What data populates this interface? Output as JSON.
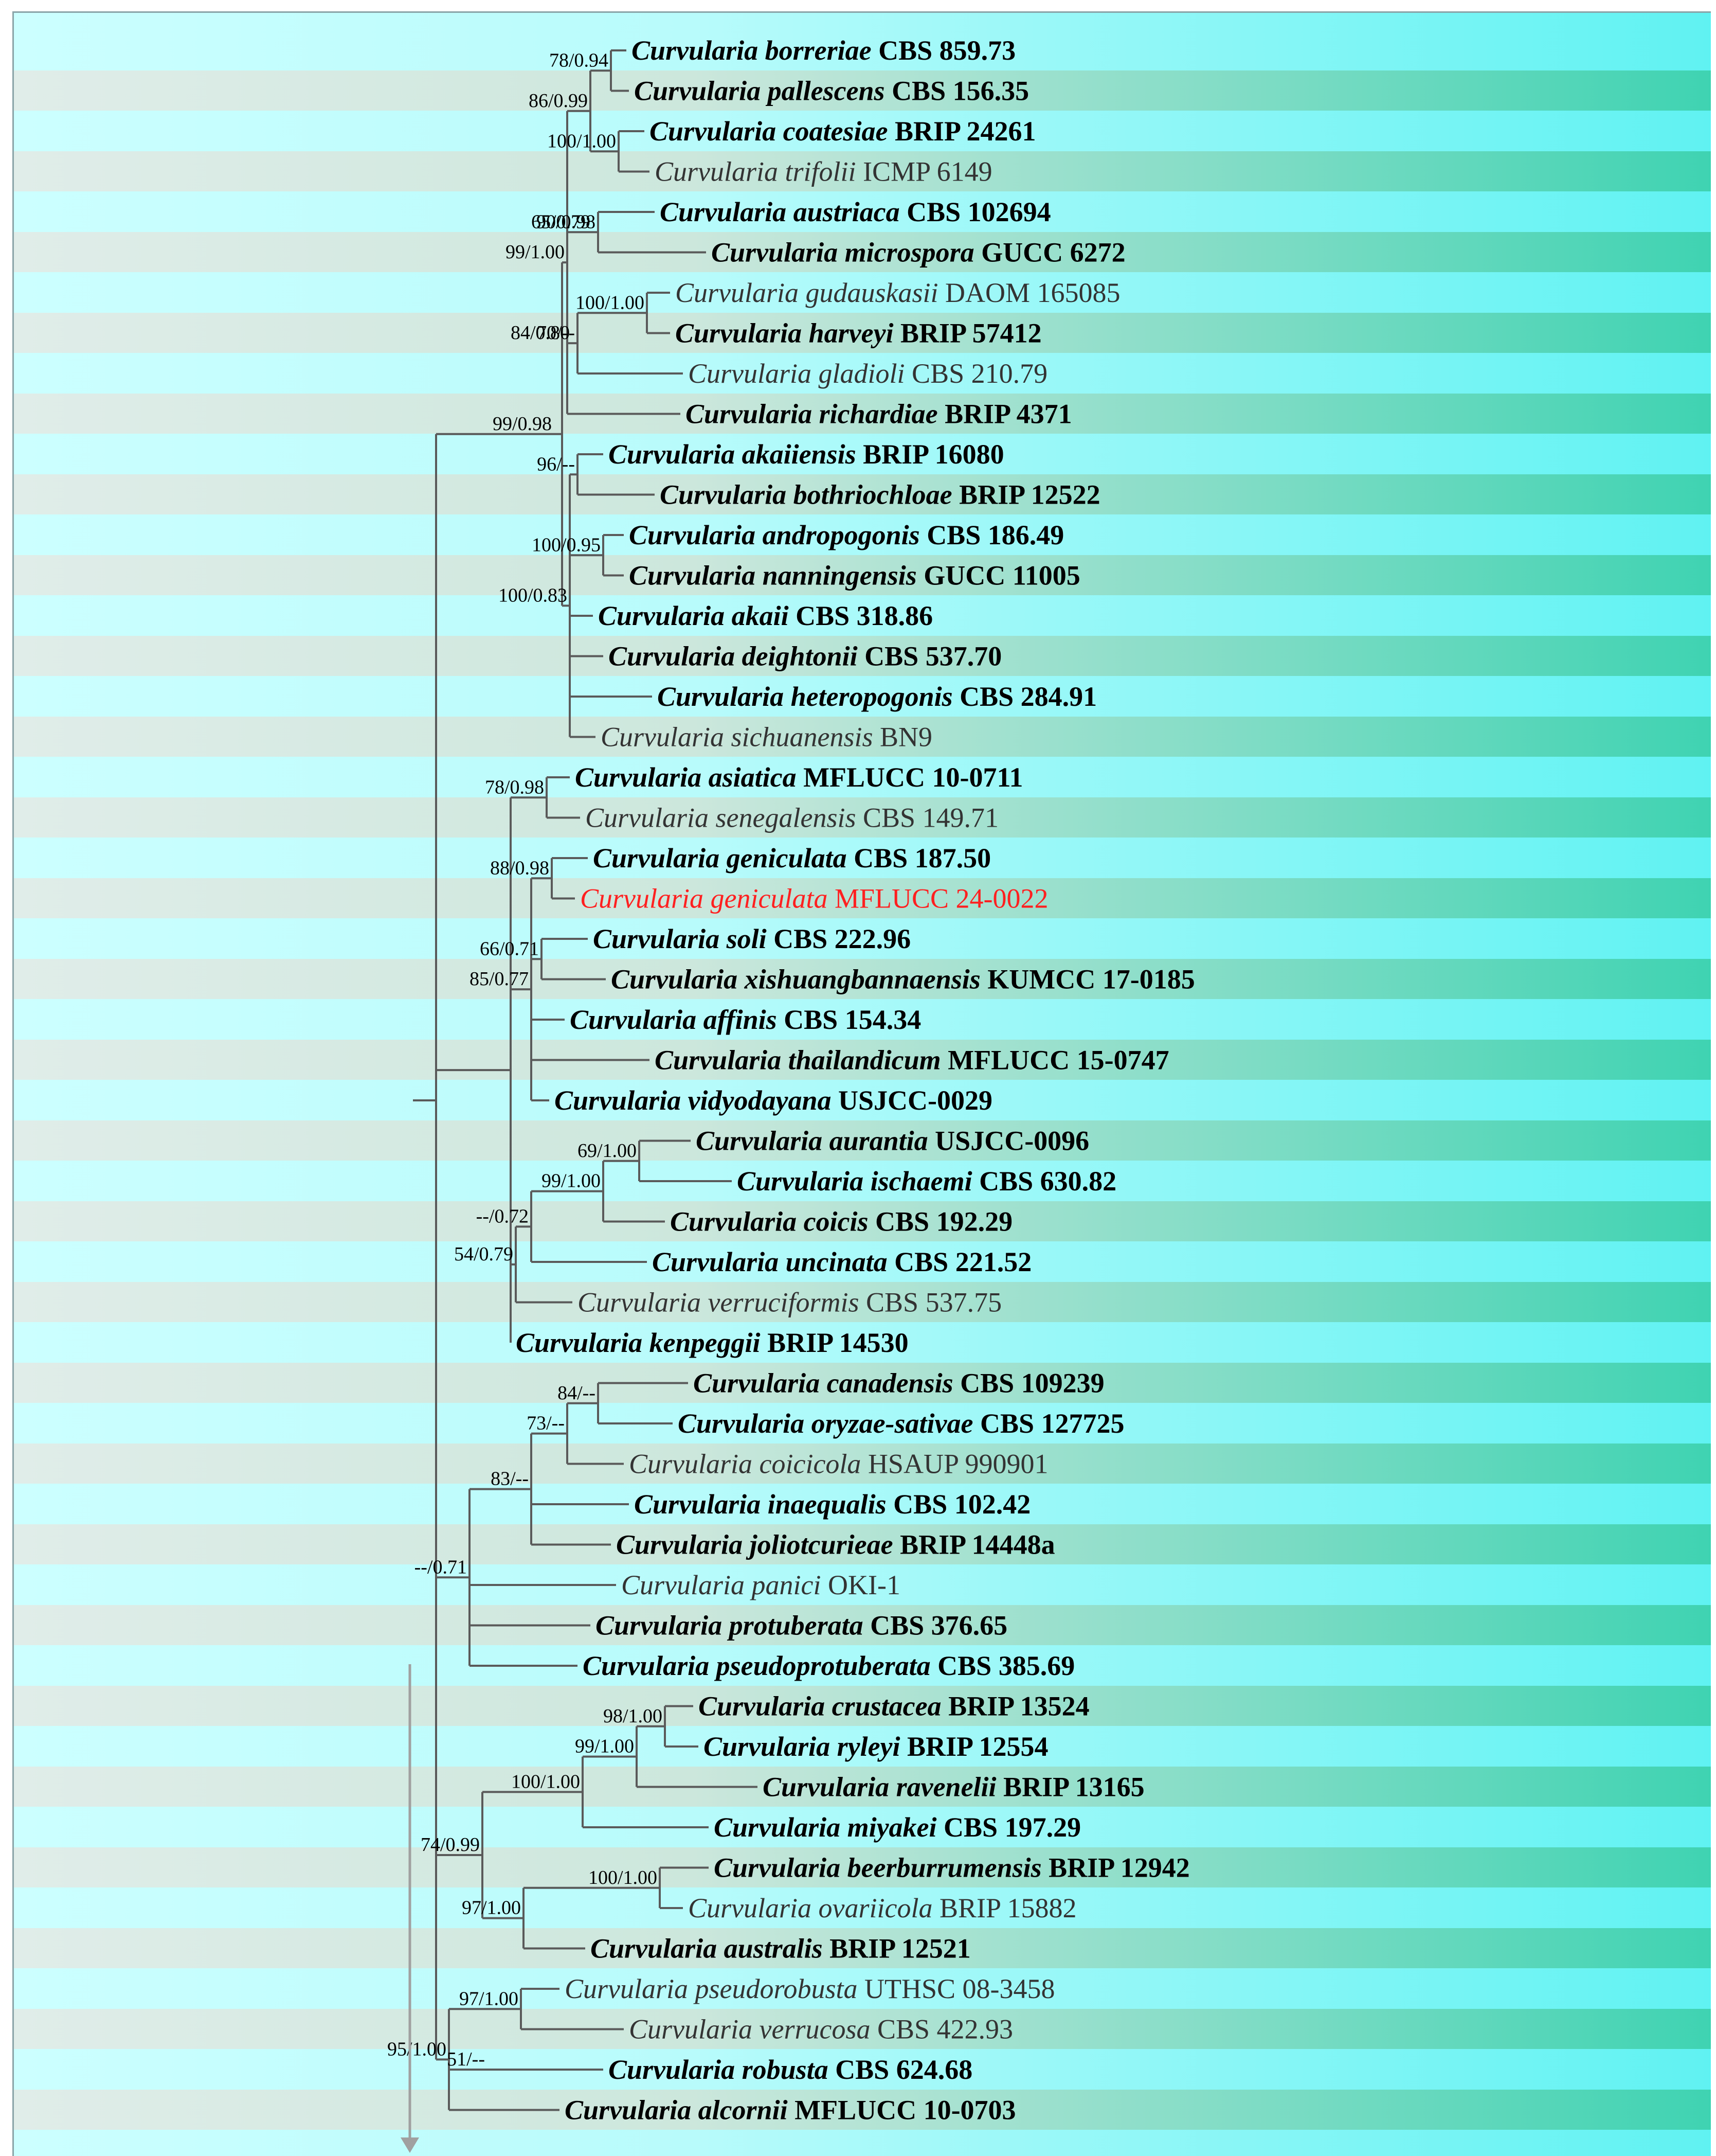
{
  "taxa": [
    {
      "genus": "Curvularia",
      "epithet": "borreriae",
      "strain": "CBS 859.73",
      "style": "bold"
    },
    {
      "genus": "Curvularia",
      "epithet": "pallescens",
      "strain": "CBS 156.35",
      "style": "bold"
    },
    {
      "genus": "Curvularia",
      "epithet": "coatesiae",
      "strain": "BRIP 24261",
      "style": "bold"
    },
    {
      "genus": "Curvularia",
      "epithet": "trifolii",
      "strain": "ICMP 6149",
      "style": "plain"
    },
    {
      "genus": "Curvularia",
      "epithet": "austriaca",
      "strain": "CBS 102694",
      "style": "bold"
    },
    {
      "genus": "Curvularia",
      "epithet": "microspora",
      "strain": "GUCC 6272",
      "style": "bold"
    },
    {
      "genus": "Curvularia",
      "epithet": "gudauskasii",
      "strain": "DAOM 165085",
      "style": "plain"
    },
    {
      "genus": "Curvularia",
      "epithet": "harveyi",
      "strain": "BRIP 57412",
      "style": "bold"
    },
    {
      "genus": "Curvularia",
      "epithet": "gladioli",
      "strain": "CBS 210.79",
      "style": "plain"
    },
    {
      "genus": "Curvularia",
      "epithet": "richardiae",
      "strain": "BRIP 4371",
      "style": "bold"
    },
    {
      "genus": "Curvularia",
      "epithet": "akaiiensis",
      "strain": "BRIP 16080",
      "style": "bold"
    },
    {
      "genus": "Curvularia",
      "epithet": "bothriochloae",
      "strain": "BRIP 12522",
      "style": "bold"
    },
    {
      "genus": "Curvularia",
      "epithet": "andropogonis",
      "strain": "CBS 186.49",
      "style": "bold"
    },
    {
      "genus": "Curvularia",
      "epithet": "nanningensis",
      "strain": "GUCC 11005",
      "style": "bold"
    },
    {
      "genus": "Curvularia",
      "epithet": "akaii",
      "strain": "CBS 318.86",
      "style": "bold"
    },
    {
      "genus": "Curvularia",
      "epithet": "deightonii",
      "strain": "CBS 537.70",
      "style": "bold"
    },
    {
      "genus": "Curvularia",
      "epithet": "heteropogonis",
      "strain": "CBS 284.91",
      "style": "bold"
    },
    {
      "genus": "Curvularia",
      "epithet": "sichuanensis",
      "strain": "BN9",
      "style": "plain"
    },
    {
      "genus": "Curvularia",
      "epithet": "asiatica",
      "strain": "MFLUCC 10-0711",
      "style": "bold"
    },
    {
      "genus": "Curvularia",
      "epithet": "senegalensis",
      "strain": "CBS 149.71",
      "style": "plain"
    },
    {
      "genus": "Curvularia",
      "epithet": "geniculata",
      "strain": "CBS 187.50",
      "style": "bold"
    },
    {
      "genus": "Curvularia",
      "epithet": "geniculata",
      "strain": "MFLUCC 24-0022",
      "style": "highlight"
    },
    {
      "genus": "Curvularia",
      "epithet": "soli",
      "strain": "CBS 222.96",
      "style": "bold"
    },
    {
      "genus": "Curvularia",
      "epithet": "xishuangbannaensis",
      "strain": "KUMCC 17-0185",
      "style": "bold"
    },
    {
      "genus": "Curvularia",
      "epithet": "affinis",
      "strain": "CBS 154.34",
      "style": "bold"
    },
    {
      "genus": "Curvularia",
      "epithet": "thailandicum",
      "strain": "MFLUCC 15-0747",
      "style": "bold"
    },
    {
      "genus": "Curvularia",
      "epithet": "vidyodayana",
      "strain": "USJCC-0029",
      "style": "bold"
    },
    {
      "genus": "Curvularia",
      "epithet": "aurantia",
      "strain": "USJCC-0096",
      "style": "bold"
    },
    {
      "genus": "Curvularia",
      "epithet": "ischaemi",
      "strain": "CBS 630.82",
      "style": "bold"
    },
    {
      "genus": "Curvularia",
      "epithet": "coicis",
      "strain": "CBS 192.29",
      "style": "bold"
    },
    {
      "genus": "Curvularia",
      "epithet": "uncinata",
      "strain": "CBS 221.52",
      "style": "bold"
    },
    {
      "genus": "Curvularia",
      "epithet": "verruciformis",
      "strain": "CBS 537.75",
      "style": "plain"
    },
    {
      "genus": "Curvularia",
      "epithet": "kenpeggii",
      "strain": "BRIP 14530",
      "style": "bold"
    },
    {
      "genus": "Curvularia",
      "epithet": "canadensis",
      "strain": "CBS 109239",
      "style": "bold"
    },
    {
      "genus": "Curvularia",
      "epithet": "oryzae-sativae",
      "strain": "CBS 127725",
      "style": "bold"
    },
    {
      "genus": "Curvularia",
      "epithet": "coicicola",
      "strain": "HSAUP 990901",
      "style": "plain"
    },
    {
      "genus": "Curvularia",
      "epithet": "inaequalis",
      "strain": "CBS 102.42",
      "style": "bold"
    },
    {
      "genus": "Curvularia",
      "epithet": "joliotcurieae",
      "strain": "BRIP 14448a",
      "style": "bold"
    },
    {
      "genus": "Curvularia",
      "epithet": "panici",
      "strain": "OKI-1",
      "style": "plain"
    },
    {
      "genus": "Curvularia",
      "epithet": "protuberata",
      "strain": "CBS 376.65",
      "style": "bold"
    },
    {
      "genus": "Curvularia",
      "epithet": "pseudoprotuberata",
      "strain": "CBS 385.69",
      "style": "bold"
    },
    {
      "genus": "Curvularia",
      "epithet": "crustacea",
      "strain": "BRIP 13524",
      "style": "bold"
    },
    {
      "genus": "Curvularia",
      "epithet": "ryleyi",
      "strain": "BRIP 12554",
      "style": "bold"
    },
    {
      "genus": "Curvularia",
      "epithet": "ravenelii",
      "strain": "BRIP 13165",
      "style": "bold"
    },
    {
      "genus": "Curvularia",
      "epithet": "miyakei",
      "strain": "CBS 197.29",
      "style": "bold"
    },
    {
      "genus": "Curvularia",
      "epithet": "beerburrumensis",
      "strain": "BRIP 12942",
      "style": "bold"
    },
    {
      "genus": "Curvularia",
      "epithet": "ovariicola",
      "strain": "BRIP 15882",
      "style": "plain"
    },
    {
      "genus": "Curvularia",
      "epithet": "australis",
      "strain": "BRIP 12521",
      "style": "bold"
    },
    {
      "genus": "Curvularia",
      "epithet": "pseudorobusta",
      "strain": "UTHSC 08-3458",
      "style": "plain"
    },
    {
      "genus": "Curvularia",
      "epithet": "verrucosa",
      "strain": "CBS 422.93",
      "style": "plain"
    },
    {
      "genus": "Curvularia",
      "epithet": "robusta",
      "strain": "CBS 624.68",
      "style": "bold"
    },
    {
      "genus": "Curvularia",
      "epithet": "alcornii",
      "strain": "MFLUCC 10-0703",
      "style": "bold"
    }
  ],
  "supports": [
    "78/0.94",
    "86/0.99",
    "100/1.00",
    "65/0.79",
    "90/0.98",
    "84/0.80",
    "100/1.00",
    "99/1.00",
    "70/--",
    "99/0.98",
    "96/--",
    "100/0.95",
    "100/0.83",
    "78/0.98",
    "88/0.98",
    "66/0.71",
    "85/0.77",
    "69/1.00",
    "99/1.00",
    "--/0.72",
    "54/0.79",
    "84/--",
    "73/--",
    "83/--",
    "--/0.71",
    "98/1.00",
    "99/1.00",
    "100/1.00",
    "74/0.99",
    "100/1.00",
    "97/1.00",
    "97/1.00",
    "95/1.00",
    "51/--"
  ],
  "colors": {
    "row_light": "#b8fbfb",
    "row_dark": "#3fd3b2",
    "highlight": "#ff2020",
    "branch": "#5a5a5a",
    "arrow": "#a0a0a0"
  },
  "icons": [
    "down-arrow-icon"
  ]
}
